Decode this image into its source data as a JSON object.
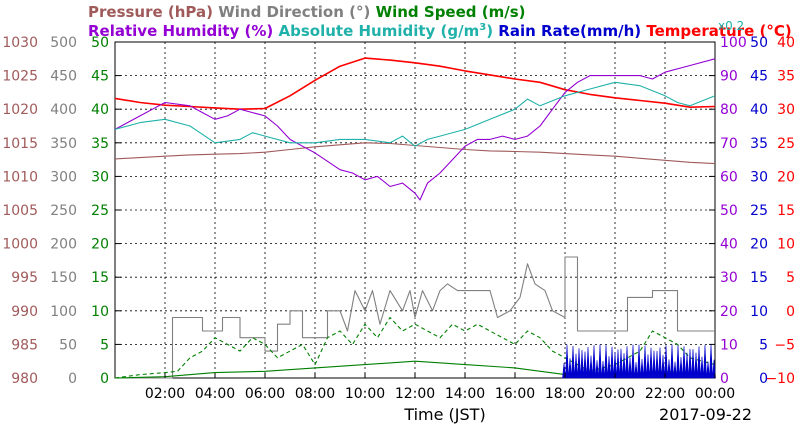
{
  "chart_data": {
    "type": "line",
    "date": "2017-09-22",
    "xlabel": "Time (JST)",
    "x_ticks": [
      "02:00",
      "04:00",
      "06:00",
      "08:00",
      "10:00",
      "12:00",
      "14:00",
      "16:00",
      "18:00",
      "20:00",
      "22:00",
      "00:00"
    ],
    "x_range_hours": [
      0,
      24
    ],
    "grid": true,
    "legend": [
      {
        "name": "Pressure (hPa)",
        "color": "#a05a5a"
      },
      {
        "name": "Wind Direction (°)",
        "color": "#808080"
      },
      {
        "name": "Wind Speed (m/s)",
        "color": "#008000"
      },
      {
        "name": "Relative Humidity (%)",
        "color": "#9400d3"
      },
      {
        "name": "Absolute Humidity (g/m",
        "sup": "3",
        "close": ")",
        "color": "#20b2aa"
      },
      {
        "name": "Rain Rate(mm/h)",
        "color": "#0000cd"
      },
      {
        "name": "Temperature (°C)",
        "color": "#ff0000"
      }
    ],
    "scale_note": "x0.2",
    "axes": {
      "pressure": {
        "color": "#a05a5a",
        "range": [
          980,
          1030
        ],
        "ticks": [
          "1030",
          "1025",
          "1020",
          "1015",
          "1010",
          "1005",
          "1000",
          "995",
          "990",
          "985",
          "980"
        ]
      },
      "wind_direction": {
        "color": "#808080",
        "range": [
          0,
          500
        ],
        "ticks": [
          "500",
          "450",
          "400",
          "350",
          "300",
          "250",
          "200",
          "150",
          "100",
          "50",
          "0"
        ]
      },
      "wind_speed": {
        "color": "#008000",
        "range": [
          0,
          50
        ],
        "ticks": [
          "50",
          "45",
          "40",
          "35",
          "30",
          "25",
          "20",
          "15",
          "10",
          "5",
          "0"
        ]
      },
      "relative_humidity": {
        "color": "#9400d3",
        "range": [
          0,
          100
        ],
        "ticks": [
          "100",
          "90",
          "80",
          "70",
          "60",
          "50",
          "40",
          "30",
          "20",
          "10",
          "0"
        ]
      },
      "rain_rate": {
        "color": "#0000cd",
        "range": [
          0,
          50
        ],
        "ticks": [
          "50",
          "45",
          "40",
          "35",
          "30",
          "25",
          "20",
          "15",
          "10",
          "5",
          "0"
        ]
      },
      "temperature": {
        "color": "#ff0000",
        "range": [
          -10,
          40
        ],
        "ticks": [
          "40",
          "35",
          "30",
          "25",
          "20",
          "15",
          "10",
          "5",
          "0",
          "−5",
          "−10"
        ]
      }
    },
    "series": [
      {
        "name": "Temperature (°C)",
        "axis": "temperature",
        "color": "#ff0000",
        "points": [
          [
            0,
            31.6
          ],
          [
            1,
            31.0
          ],
          [
            2,
            30.6
          ],
          [
            3,
            30.4
          ],
          [
            4,
            30.2
          ],
          [
            5,
            30.0
          ],
          [
            6,
            30.1
          ],
          [
            7,
            32.0
          ],
          [
            8,
            34.3
          ],
          [
            9,
            36.4
          ],
          [
            10,
            37.6
          ],
          [
            11,
            37.3
          ],
          [
            12,
            36.9
          ],
          [
            13,
            36.4
          ],
          [
            14,
            35.7
          ],
          [
            15,
            35.1
          ],
          [
            16,
            34.5
          ],
          [
            17,
            34.0
          ],
          [
            18,
            32.9
          ],
          [
            19,
            32.2
          ],
          [
            20,
            31.7
          ],
          [
            21,
            31.3
          ],
          [
            22,
            30.9
          ],
          [
            23,
            30.3
          ],
          [
            24,
            30.4
          ]
        ]
      },
      {
        "name": "Pressure (hPa)",
        "axis": "pressure",
        "color": "#a05a5a",
        "points": [
          [
            0,
            1012.6
          ],
          [
            1,
            1012.8
          ],
          [
            2,
            1013.0
          ],
          [
            3,
            1013.2
          ],
          [
            4,
            1013.3
          ],
          [
            5,
            1013.4
          ],
          [
            6,
            1013.6
          ],
          [
            7,
            1014.0
          ],
          [
            8,
            1014.4
          ],
          [
            9,
            1014.7
          ],
          [
            10,
            1015.0
          ],
          [
            11,
            1014.9
          ],
          [
            12,
            1014.6
          ],
          [
            13,
            1014.3
          ],
          [
            14,
            1014.0
          ],
          [
            15,
            1013.8
          ],
          [
            16,
            1013.7
          ],
          [
            17,
            1013.6
          ],
          [
            18,
            1013.4
          ],
          [
            19,
            1013.2
          ],
          [
            20,
            1013.0
          ],
          [
            21,
            1012.7
          ],
          [
            22,
            1012.4
          ],
          [
            23,
            1012.1
          ],
          [
            24,
            1011.9
          ]
        ]
      },
      {
        "name": "Relative Humidity (%)",
        "axis": "relative_humidity",
        "color": "#9400d3",
        "points": [
          [
            0,
            74
          ],
          [
            0.5,
            76
          ],
          [
            1,
            78
          ],
          [
            1.5,
            80
          ],
          [
            2,
            82
          ],
          [
            3,
            81
          ],
          [
            3.5,
            79
          ],
          [
            4,
            77
          ],
          [
            4.5,
            78
          ],
          [
            5,
            80
          ],
          [
            5.5,
            79
          ],
          [
            6,
            78
          ],
          [
            6.5,
            75
          ],
          [
            7,
            71
          ],
          [
            7.5,
            69
          ],
          [
            8,
            67
          ],
          [
            9,
            62
          ],
          [
            9.5,
            61
          ],
          [
            10,
            59
          ],
          [
            10.5,
            60
          ],
          [
            11,
            57
          ],
          [
            11.5,
            58
          ],
          [
            12,
            55
          ],
          [
            12.2,
            53
          ],
          [
            12.5,
            58
          ],
          [
            13,
            61
          ],
          [
            13.5,
            65
          ],
          [
            14,
            69
          ],
          [
            14.5,
            71
          ],
          [
            15,
            71
          ],
          [
            15.5,
            72
          ],
          [
            16,
            71
          ],
          [
            16.5,
            72
          ],
          [
            17,
            75
          ],
          [
            17.5,
            80
          ],
          [
            18,
            85
          ],
          [
            18.5,
            88
          ],
          [
            19,
            90
          ],
          [
            20,
            90
          ],
          [
            21,
            90
          ],
          [
            21.5,
            89
          ],
          [
            22,
            91
          ],
          [
            23,
            93
          ],
          [
            24,
            95
          ]
        ]
      },
      {
        "name": "Absolute Humidity (g/m3)",
        "axis": "relative_humidity",
        "color": "#20b2aa",
        "points": [
          [
            0,
            74
          ],
          [
            1,
            76
          ],
          [
            2,
            77
          ],
          [
            3,
            75
          ],
          [
            4,
            70
          ],
          [
            5,
            71
          ],
          [
            5.5,
            73
          ],
          [
            6,
            72
          ],
          [
            7,
            70
          ],
          [
            8,
            70
          ],
          [
            9,
            71
          ],
          [
            10,
            71
          ],
          [
            11,
            70
          ],
          [
            11.5,
            72
          ],
          [
            12,
            69
          ],
          [
            12.5,
            71
          ],
          [
            13,
            72
          ],
          [
            14,
            74
          ],
          [
            15,
            77
          ],
          [
            16,
            80
          ],
          [
            16.5,
            83
          ],
          [
            17,
            81
          ],
          [
            18,
            84
          ],
          [
            19,
            86
          ],
          [
            20,
            88
          ],
          [
            21,
            87
          ],
          [
            22,
            84
          ],
          [
            22.5,
            82
          ],
          [
            23,
            81
          ],
          [
            24,
            84
          ]
        ]
      },
      {
        "name": "Wind Direction (°)",
        "axis": "wind_direction",
        "type": "step",
        "color": "#808080",
        "points": [
          [
            0,
            0
          ],
          [
            2.3,
            0
          ],
          [
            2.3,
            90
          ],
          [
            3.5,
            90
          ],
          [
            3.5,
            70
          ],
          [
            4.3,
            70
          ],
          [
            4.3,
            90
          ],
          [
            5,
            90
          ],
          [
            5,
            60
          ],
          [
            6,
            60
          ],
          [
            6,
            40
          ],
          [
            6.5,
            40
          ],
          [
            6.5,
            80
          ],
          [
            7,
            80
          ],
          [
            7,
            100
          ],
          [
            7.5,
            100
          ],
          [
            7.5,
            60
          ],
          [
            8.5,
            60
          ],
          [
            8.5,
            100
          ],
          [
            9,
            100
          ],
          [
            9.3,
            70
          ],
          [
            9.6,
            130
          ],
          [
            10,
            100
          ],
          [
            10.3,
            130
          ],
          [
            10.6,
            80
          ],
          [
            11,
            130
          ],
          [
            11.5,
            100
          ],
          [
            11.8,
            130
          ],
          [
            12,
            90
          ],
          [
            12.3,
            130
          ],
          [
            12.7,
            100
          ],
          [
            13,
            130
          ],
          [
            13.3,
            140
          ],
          [
            13.7,
            130
          ],
          [
            14,
            130
          ],
          [
            14.5,
            130
          ],
          [
            15,
            130
          ],
          [
            15.3,
            90
          ],
          [
            15.8,
            100
          ],
          [
            16.2,
            120
          ],
          [
            16.5,
            170
          ],
          [
            16.8,
            140
          ],
          [
            17.2,
            130
          ],
          [
            17.5,
            100
          ],
          [
            18,
            90
          ],
          [
            18,
            180
          ],
          [
            18.5,
            180
          ],
          [
            18.5,
            70
          ],
          [
            20.5,
            70
          ],
          [
            20.5,
            120
          ],
          [
            21.5,
            120
          ],
          [
            21.5,
            130
          ],
          [
            22.5,
            130
          ],
          [
            22.5,
            70
          ],
          [
            24,
            70
          ]
        ]
      },
      {
        "name": "Wind Speed (m/s)",
        "axis": "wind_speed",
        "type": "dashed",
        "color": "#008000",
        "points": [
          [
            0,
            0
          ],
          [
            1,
            0.5
          ],
          [
            2,
            0.8
          ],
          [
            2.5,
            1
          ],
          [
            3,
            3
          ],
          [
            3.5,
            4
          ],
          [
            4,
            6
          ],
          [
            4.5,
            5
          ],
          [
            5,
            4
          ],
          [
            5.5,
            6
          ],
          [
            6,
            5
          ],
          [
            6.5,
            3
          ],
          [
            7,
            4
          ],
          [
            7.5,
            5
          ],
          [
            8,
            2
          ],
          [
            8.5,
            6
          ],
          [
            9,
            7
          ],
          [
            9.5,
            5
          ],
          [
            10,
            8
          ],
          [
            10.5,
            6
          ],
          [
            11,
            9
          ],
          [
            11.5,
            7
          ],
          [
            12,
            8
          ],
          [
            12.5,
            7
          ],
          [
            13,
            6
          ],
          [
            13.5,
            8
          ],
          [
            14,
            7
          ],
          [
            14.5,
            8
          ],
          [
            15,
            7
          ],
          [
            15.5,
            6
          ],
          [
            16,
            5
          ],
          [
            16.5,
            7
          ],
          [
            17,
            6
          ],
          [
            17.5,
            4
          ],
          [
            18,
            3
          ],
          [
            18.5,
            2
          ],
          [
            19,
            1
          ],
          [
            19.5,
            1.5
          ],
          [
            20,
            2
          ],
          [
            20.5,
            3
          ],
          [
            21,
            4
          ],
          [
            21.5,
            7
          ],
          [
            22,
            6
          ],
          [
            22.5,
            5
          ],
          [
            23,
            3
          ],
          [
            24,
            2
          ]
        ]
      },
      {
        "name": "Wind Speed avg (m/s)",
        "axis": "wind_speed",
        "color": "#008000",
        "points": [
          [
            0,
            0
          ],
          [
            2,
            0.2
          ],
          [
            4,
            0.8
          ],
          [
            6,
            1
          ],
          [
            8,
            1.5
          ],
          [
            10,
            2
          ],
          [
            12,
            2.5
          ],
          [
            14,
            2
          ],
          [
            16,
            1.5
          ],
          [
            18,
            0.5
          ],
          [
            20,
            0.5
          ],
          [
            22,
            1
          ],
          [
            24,
            0.5
          ]
        ]
      },
      {
        "name": "Rain Rate(mm/h)",
        "axis": "rain_rate",
        "type": "spikes",
        "color": "#0000cd",
        "points": [
          [
            17.9,
            0
          ],
          [
            24,
            0
          ]
        ],
        "spike_start": 17.9,
        "spike_end": 24,
        "spike_max": 5
      }
    ]
  }
}
